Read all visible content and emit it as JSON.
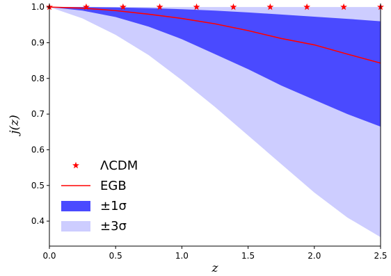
{
  "chart_data": {
    "type": "line",
    "xlabel": "z",
    "ylabel": "j(z)",
    "xlim": [
      0,
      2.5
    ],
    "ylim": [
      0.33,
      1.01
    ],
    "xticks": [
      "0.0",
      "0.5",
      "1.0",
      "1.5",
      "2.0",
      "2.5"
    ],
    "yticks": [
      "0.4",
      "0.5",
      "0.6",
      "0.7",
      "0.8",
      "0.9",
      "1.0"
    ],
    "grid": false,
    "legend_position": "lower-left",
    "x": [
      0,
      0.25,
      0.5,
      0.75,
      1.0,
      1.25,
      1.5,
      1.75,
      2.0,
      2.25,
      2.5
    ],
    "series": [
      {
        "name": "ΛCDM",
        "style": "star-markers",
        "color": "#ff0000",
        "x": [
          0.0,
          0.278,
          0.556,
          0.833,
          1.111,
          1.389,
          1.667,
          1.944,
          2.222,
          2.5
        ],
        "values": [
          1,
          1,
          1,
          1,
          1,
          1,
          1,
          1,
          1,
          1
        ]
      },
      {
        "name": "EGB",
        "style": "line",
        "color": "#ff0000",
        "values": [
          1.0,
          0.997,
          0.99,
          0.98,
          0.968,
          0.953,
          0.934,
          0.912,
          0.894,
          0.868,
          0.843
        ]
      },
      {
        "name": "±1σ",
        "style": "band",
        "color": "#4a4aff",
        "upper": [
          1.0,
          1.0,
          0.999,
          0.997,
          0.994,
          0.99,
          0.985,
          0.979,
          0.973,
          0.967,
          0.96
        ],
        "lower": [
          1.0,
          0.99,
          0.972,
          0.945,
          0.91,
          0.868,
          0.826,
          0.78,
          0.74,
          0.7,
          0.665
        ]
      },
      {
        "name": "±3σ",
        "style": "band",
        "color": "#cdcdff",
        "upper": [
          1.0,
          1.0,
          1.0,
          1.0,
          1.0,
          1.0,
          1.0,
          1.0,
          1.0,
          1.0,
          1.0
        ],
        "lower": [
          1.0,
          0.968,
          0.922,
          0.865,
          0.795,
          0.72,
          0.64,
          0.56,
          0.48,
          0.41,
          0.355
        ]
      }
    ]
  }
}
